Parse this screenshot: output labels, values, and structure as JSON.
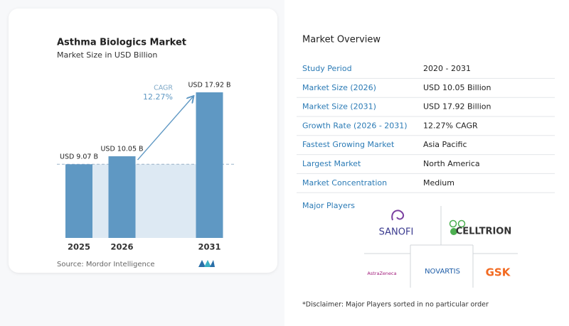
{
  "chart_data": {
    "type": "bar",
    "title": "Asthma Biologics Market",
    "subtitle": "Market Size in USD Billion",
    "categories": [
      "2025",
      "2026",
      "2031"
    ],
    "values": [
      9.07,
      10.05,
      17.92
    ],
    "value_labels": [
      "USD 9.07 B",
      "USD 10.05 B",
      "USD 17.92 B"
    ],
    "color": "#5f98c3",
    "annotation_label": "CAGR",
    "annotation_value": "12.27%",
    "source": "Source: Mordor Intelligence"
  },
  "overview": {
    "title": "Market Overview",
    "rows": [
      [
        "Study Period",
        "2020 - 2031"
      ],
      [
        "Market Size (2026)",
        "USD 10.05 Billion"
      ],
      [
        "Market Size (2031)",
        "USD 17.92 Billion"
      ],
      [
        "Growth Rate (2026 - 2031)",
        "12.27% CAGR"
      ],
      [
        "Fastest Growing Market",
        "Asia Pacific"
      ],
      [
        "Largest Market",
        "North America"
      ],
      [
        "Market Concentration",
        "Medium"
      ]
    ],
    "players_title": "Major Players",
    "players": [
      "SANOFI",
      "CELLTRION",
      "AstraZeneca",
      "NOVARTIS",
      "GSK"
    ],
    "disclaimer": "*Disclaimer: Major Players sorted in no particular order"
  }
}
